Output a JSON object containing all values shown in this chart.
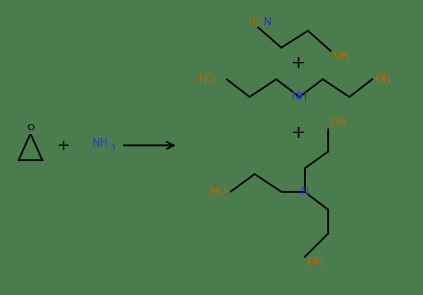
{
  "bg_color": "#4a7c4e",
  "line_color": "#000000",
  "text_color": "#000000",
  "het_color": "#3333cc",
  "oh_color": "#bb6600",
  "figsize": [
    6.0,
    4.19
  ],
  "dpi": 100,
  "xlim": [
    0,
    10
  ],
  "ylim": [
    0,
    7
  ]
}
